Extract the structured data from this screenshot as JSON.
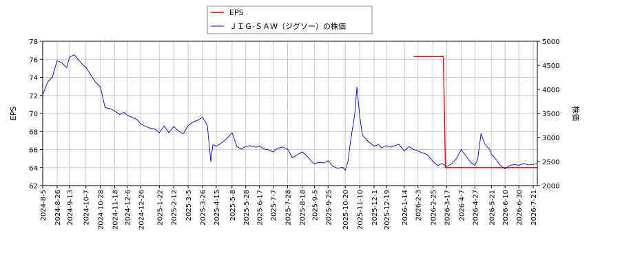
{
  "chart_data": {
    "type": "line",
    "y_left_label": "EPS",
    "y_right_label": "株価",
    "y_left_lim": [
      62,
      78
    ],
    "y_left_ticks": [
      62,
      64,
      66,
      68,
      70,
      72,
      74,
      76,
      78
    ],
    "y_right_lim": [
      2000,
      5000
    ],
    "y_right_ticks": [
      2000,
      2500,
      3000,
      3500,
      4000,
      4500,
      5000
    ],
    "x_start": "2024-08-05",
    "x_end": "2026-07-27",
    "x_ticks": [
      "2024-8-5",
      "2024-8-26",
      "2024-9-13",
      "2024-10-7",
      "2024-10-28",
      "2024-11-18",
      "2024-12-6",
      "2024-12-26",
      "2025-1-22",
      "2025-2-12",
      "2025-3-5",
      "2025-3-26",
      "2025-4-15",
      "2025-5-8",
      "2025-5-28",
      "2025-6-17",
      "2025-7-7",
      "2025-7-28",
      "2025-8-18",
      "2025-9-5",
      "2025-9-25",
      "2025-10-20",
      "2025-11-10",
      "2025-12-1",
      "2025-12-19",
      "2026-1-14",
      "2026-2-3",
      "2026-2-25",
      "2026-3-17",
      "2026-4-7",
      "2026-4-27",
      "2026-5-21",
      "2026-6-10",
      "2026-6-30",
      "2026-7-21"
    ],
    "grid": true,
    "legend_position": "top-center",
    "series": [
      {
        "name": "EPS",
        "axis": "left",
        "color": "#dd0000",
        "points": [
          [
            "2026-01-28",
            76.3
          ],
          [
            "2026-03-12",
            76.3
          ],
          [
            "2026-03-15",
            64.0
          ],
          [
            "2026-07-27",
            64.0
          ]
        ]
      },
      {
        "name": "ＪＩＧ-ＳＡＷ（ジグソー）の株価",
        "axis": "right",
        "color": "#0000cc",
        "points": [
          [
            "2024-08-05",
            3880
          ],
          [
            "2024-08-12",
            4150
          ],
          [
            "2024-08-19",
            4250
          ],
          [
            "2024-08-26",
            4600
          ],
          [
            "2024-09-02",
            4550
          ],
          [
            "2024-09-09",
            4450
          ],
          [
            "2024-09-13",
            4670
          ],
          [
            "2024-09-20",
            4720
          ],
          [
            "2024-09-27",
            4600
          ],
          [
            "2024-10-03",
            4500
          ],
          [
            "2024-10-07",
            4460
          ],
          [
            "2024-10-14",
            4300
          ],
          [
            "2024-10-21",
            4150
          ],
          [
            "2024-10-28",
            4050
          ],
          [
            "2024-11-04",
            3620
          ],
          [
            "2024-11-11",
            3600
          ],
          [
            "2024-11-18",
            3550
          ],
          [
            "2024-11-25",
            3480
          ],
          [
            "2024-12-02",
            3520
          ],
          [
            "2024-12-06",
            3460
          ],
          [
            "2024-12-13",
            3420
          ],
          [
            "2024-12-20",
            3380
          ],
          [
            "2024-12-26",
            3280
          ],
          [
            "2025-01-07",
            3200
          ],
          [
            "2025-01-15",
            3180
          ],
          [
            "2025-01-22",
            3100
          ],
          [
            "2025-01-29",
            3240
          ],
          [
            "2025-02-05",
            3100
          ],
          [
            "2025-02-12",
            3230
          ],
          [
            "2025-02-19",
            3130
          ],
          [
            "2025-02-26",
            3080
          ],
          [
            "2025-03-05",
            3250
          ],
          [
            "2025-03-12",
            3320
          ],
          [
            "2025-03-19",
            3360
          ],
          [
            "2025-03-26",
            3420
          ],
          [
            "2025-04-02",
            3250
          ],
          [
            "2025-04-07",
            2500
          ],
          [
            "2025-04-10",
            2850
          ],
          [
            "2025-04-15",
            2820
          ],
          [
            "2025-04-22",
            2880
          ],
          [
            "2025-04-29",
            2960
          ],
          [
            "2025-05-08",
            3100
          ],
          [
            "2025-05-15",
            2810
          ],
          [
            "2025-05-22",
            2760
          ],
          [
            "2025-05-28",
            2820
          ],
          [
            "2025-06-04",
            2830
          ],
          [
            "2025-06-11",
            2800
          ],
          [
            "2025-06-17",
            2820
          ],
          [
            "2025-06-24",
            2760
          ],
          [
            "2025-07-01",
            2740
          ],
          [
            "2025-07-07",
            2700
          ],
          [
            "2025-07-14",
            2780
          ],
          [
            "2025-07-21",
            2800
          ],
          [
            "2025-07-28",
            2760
          ],
          [
            "2025-08-04",
            2580
          ],
          [
            "2025-08-11",
            2640
          ],
          [
            "2025-08-18",
            2700
          ],
          [
            "2025-08-25",
            2620
          ],
          [
            "2025-09-01",
            2500
          ],
          [
            "2025-09-05",
            2460
          ],
          [
            "2025-09-12",
            2480
          ],
          [
            "2025-09-19",
            2470
          ],
          [
            "2025-09-25",
            2520
          ],
          [
            "2025-10-02",
            2400
          ],
          [
            "2025-10-09",
            2360
          ],
          [
            "2025-10-16",
            2380
          ],
          [
            "2025-10-20",
            2320
          ],
          [
            "2025-10-24",
            2500
          ],
          [
            "2025-10-28",
            2950
          ],
          [
            "2025-11-03",
            3500
          ],
          [
            "2025-11-06",
            4050
          ],
          [
            "2025-11-10",
            3450
          ],
          [
            "2025-11-14",
            3050
          ],
          [
            "2025-11-20",
            2950
          ],
          [
            "2025-11-26",
            2880
          ],
          [
            "2025-12-01",
            2820
          ],
          [
            "2025-12-08",
            2850
          ],
          [
            "2025-12-12",
            2780
          ],
          [
            "2025-12-19",
            2830
          ],
          [
            "2025-12-26",
            2800
          ],
          [
            "2026-01-06",
            2860
          ],
          [
            "2026-01-14",
            2720
          ],
          [
            "2026-01-21",
            2810
          ],
          [
            "2026-01-28",
            2750
          ],
          [
            "2026-02-03",
            2720
          ],
          [
            "2026-02-10",
            2680
          ],
          [
            "2026-02-17",
            2640
          ],
          [
            "2026-02-25",
            2500
          ],
          [
            "2026-03-04",
            2420
          ],
          [
            "2026-03-10",
            2460
          ],
          [
            "2026-03-17",
            2400
          ],
          [
            "2026-03-24",
            2450
          ],
          [
            "2026-03-31",
            2560
          ],
          [
            "2026-04-07",
            2750
          ],
          [
            "2026-04-14",
            2620
          ],
          [
            "2026-04-21",
            2480
          ],
          [
            "2026-04-27",
            2420
          ],
          [
            "2026-05-01",
            2550
          ],
          [
            "2026-05-06",
            3080
          ],
          [
            "2026-05-12",
            2850
          ],
          [
            "2026-05-18",
            2760
          ],
          [
            "2026-05-21",
            2660
          ],
          [
            "2026-05-28",
            2540
          ],
          [
            "2026-06-03",
            2420
          ],
          [
            "2026-06-10",
            2350
          ],
          [
            "2026-06-17",
            2420
          ],
          [
            "2026-06-24",
            2440
          ],
          [
            "2026-06-30",
            2420
          ],
          [
            "2026-07-07",
            2460
          ],
          [
            "2026-07-14",
            2430
          ],
          [
            "2026-07-21",
            2440
          ],
          [
            "2026-07-27",
            2460
          ]
        ]
      }
    ]
  }
}
